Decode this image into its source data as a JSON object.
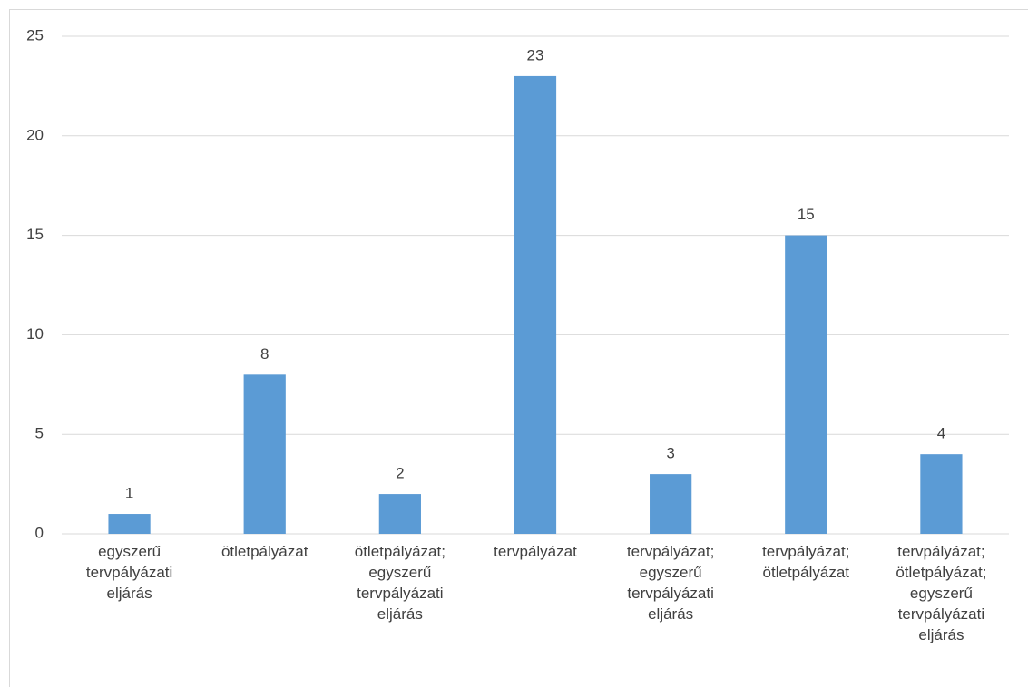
{
  "chart_data": {
    "type": "bar",
    "categories": [
      "egyszerű tervpályázati eljárás",
      "ötletpályázat",
      "ötletpályázat; egyszerű tervpályázati eljárás",
      "tervpályázat",
      "tervpályázat; egyszerű tervpályázati eljárás",
      "tervpályázat; ötletpályázat",
      "tervpályázat; ötletpályázat; egyszerű tervpályázati eljárás"
    ],
    "values": [
      1,
      8,
      2,
      23,
      3,
      15,
      4
    ],
    "color": "#5b9bd5",
    "ylim": [
      0,
      25
    ],
    "yticks": [
      0,
      5,
      10,
      15,
      20,
      25
    ],
    "grid": true
  }
}
